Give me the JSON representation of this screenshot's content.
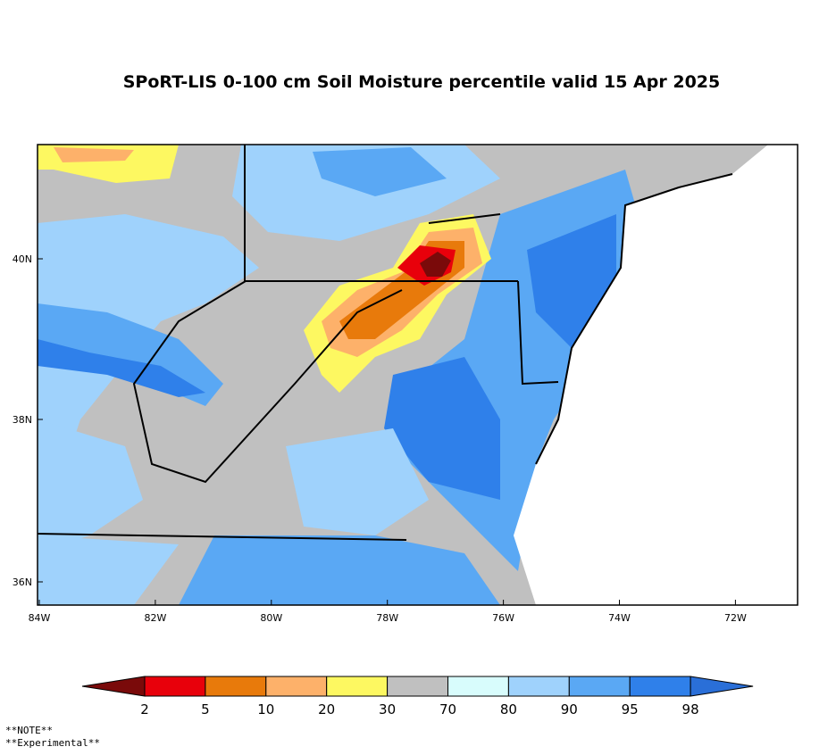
{
  "title": "SPoRT-LIS 0-100 cm Soil Moisture percentile valid 15 Apr 2025",
  "map": {
    "lat_labels": [
      "40N",
      "38N",
      "36N"
    ],
    "lon_labels": [
      "84W",
      "82W",
      "80W",
      "78W",
      "76W",
      "74W",
      "72W"
    ]
  },
  "legend": {
    "labels": [
      "2",
      "5",
      "10",
      "20",
      "30",
      "70",
      "80",
      "90",
      "95",
      "98"
    ],
    "colors": [
      "#7a0a0a",
      "#e8000b",
      "#e87a0b",
      "#fdb16a",
      "#fdf861",
      "#c0c0c0",
      "#d8fcfc",
      "#9fd2fc",
      "#5aa8f4",
      "#2f80ea",
      "#2a6fd8"
    ]
  },
  "notes": [
    "**NOTE**",
    "**Experimental**"
  ]
}
